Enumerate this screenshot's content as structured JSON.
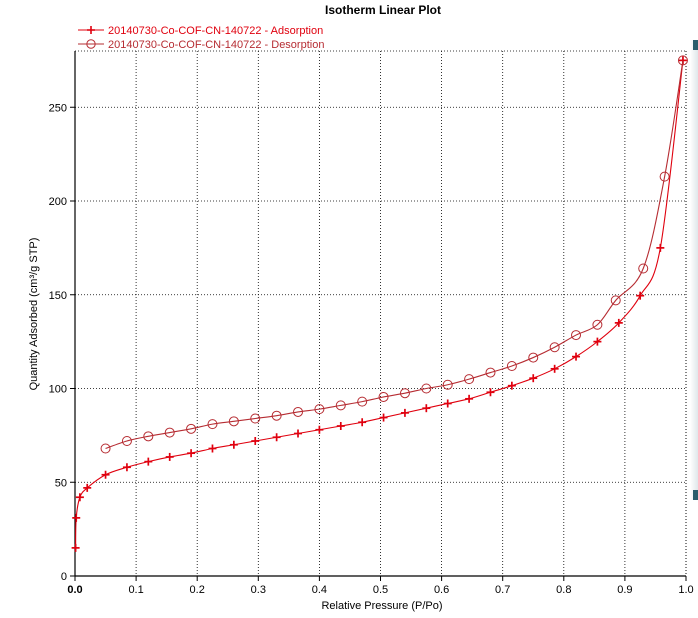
{
  "chart_data": {
    "type": "line",
    "title": "Isotherm Linear Plot",
    "xlabel": "Relative Pressure (P/Po)",
    "ylabel": "Quantity Adsorbed (cm³/g STP)",
    "xlim": [
      0.0,
      1.0
    ],
    "ylim": [
      0,
      280
    ],
    "x_ticks": [
      "0.0",
      "0.1",
      "0.2",
      "0.3",
      "0.4",
      "0.5",
      "0.6",
      "0.7",
      "0.8",
      "0.9",
      "1.0"
    ],
    "y_ticks": [
      "0",
      "50",
      "100",
      "150",
      "200",
      "250"
    ],
    "grid": true,
    "legend_position": "top-left",
    "series": [
      {
        "name": "20140730-Co-COF-CN-140722 - Adsorption",
        "marker": "plus",
        "color": "#e0000e",
        "points": [
          [
            0.001,
            15
          ],
          [
            0.002,
            31
          ],
          [
            0.008,
            42
          ],
          [
            0.02,
            47
          ],
          [
            0.05,
            54
          ],
          [
            0.085,
            58
          ],
          [
            0.12,
            61
          ],
          [
            0.155,
            63.5
          ],
          [
            0.19,
            65.5
          ],
          [
            0.225,
            68
          ],
          [
            0.26,
            70
          ],
          [
            0.295,
            72
          ],
          [
            0.33,
            74
          ],
          [
            0.365,
            76
          ],
          [
            0.4,
            78
          ],
          [
            0.435,
            80
          ],
          [
            0.47,
            82
          ],
          [
            0.505,
            84.5
          ],
          [
            0.54,
            87
          ],
          [
            0.575,
            89.5
          ],
          [
            0.61,
            92
          ],
          [
            0.645,
            94.5
          ],
          [
            0.68,
            98
          ],
          [
            0.715,
            101.5
          ],
          [
            0.75,
            105.5
          ],
          [
            0.785,
            110.5
          ],
          [
            0.82,
            117
          ],
          [
            0.855,
            125
          ],
          [
            0.89,
            135
          ],
          [
            0.925,
            149.5
          ],
          [
            0.958,
            175
          ],
          [
            0.995,
            275
          ]
        ]
      },
      {
        "name": "20140730-Co-COF-CN-140722 - Desorption",
        "marker": "circle",
        "color": "#b62c32",
        "points": [
          [
            0.995,
            275
          ],
          [
            0.965,
            213
          ],
          [
            0.93,
            164
          ],
          [
            0.885,
            147
          ],
          [
            0.855,
            134
          ],
          [
            0.82,
            128.5
          ],
          [
            0.785,
            122
          ],
          [
            0.75,
            116.5
          ],
          [
            0.715,
            112
          ],
          [
            0.68,
            108.5
          ],
          [
            0.645,
            105
          ],
          [
            0.61,
            102
          ],
          [
            0.575,
            100
          ],
          [
            0.54,
            97.5
          ],
          [
            0.505,
            95.5
          ],
          [
            0.47,
            93
          ],
          [
            0.435,
            91
          ],
          [
            0.4,
            89
          ],
          [
            0.365,
            87.5
          ],
          [
            0.33,
            85.5
          ],
          [
            0.295,
            84
          ],
          [
            0.26,
            82.5
          ],
          [
            0.225,
            81
          ],
          [
            0.19,
            78.5
          ],
          [
            0.155,
            76.5
          ],
          [
            0.12,
            74.5
          ],
          [
            0.085,
            72
          ],
          [
            0.05,
            68
          ]
        ]
      }
    ]
  }
}
